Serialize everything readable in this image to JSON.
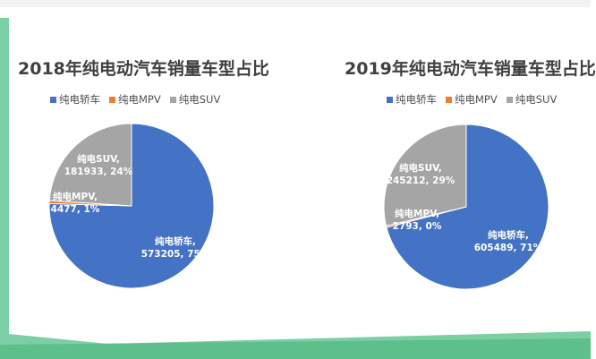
{
  "colors": {
    "sedan": "#4472c4",
    "mpv": "#ed7d31",
    "suv": "#a5a5a5",
    "frame_green": "#7ccfa4",
    "panel_top": "#f2f2f2"
  },
  "chart_data": [
    {
      "type": "pie",
      "title": "2018年纯电动汽车销量车型占比",
      "legend": "top",
      "categories": [
        "纯电轿车",
        "纯电MPV",
        "纯电SUV"
      ],
      "values": [
        573205,
        4477,
        181933
      ],
      "percents": [
        "75%",
        "1%",
        "24%"
      ],
      "data_labels": [
        [
          "纯电轿车,",
          "573205, 75%"
        ],
        [
          "纯电MPV,",
          "4477, 1%"
        ],
        [
          "纯电SUV,",
          "181933, 24%"
        ]
      ]
    },
    {
      "type": "pie",
      "title": "2019年纯电动汽车销量车型占比",
      "legend": "top",
      "categories": [
        "纯电轿车",
        "纯电MPV",
        "纯电SUV"
      ],
      "values": [
        605489,
        2793,
        245212
      ],
      "percents": [
        "71%",
        "0%",
        "29%"
      ],
      "data_labels": [
        [
          "纯电轿车,",
          "605489, 71%"
        ],
        [
          "纯电MPV,",
          "2793, 0%"
        ],
        [
          "纯电SUV,",
          "245212, 29%"
        ]
      ]
    }
  ]
}
